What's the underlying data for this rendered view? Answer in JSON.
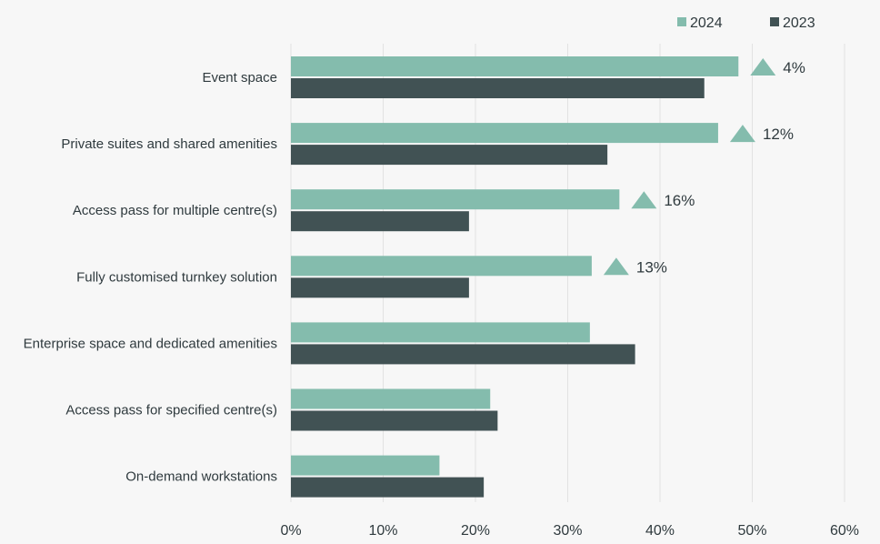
{
  "chart_data": {
    "type": "bar",
    "orientation": "horizontal",
    "categories": [
      "Event space",
      "Private suites and shared amenities",
      "Access pass for multiple centre(s)",
      "Fully customised turnkey solution",
      "Enterprise space and dedicated amenities",
      "Access pass for specified centre(s)",
      "On-demand workstations"
    ],
    "series": [
      {
        "name": "2024",
        "color": "#84bcad",
        "values": [
          48.5,
          46.3,
          35.6,
          32.6,
          32.4,
          21.6,
          16.1
        ]
      },
      {
        "name": "2023",
        "color": "#415254",
        "values": [
          44.8,
          34.3,
          19.3,
          19.3,
          37.3,
          22.4,
          20.9
        ]
      }
    ],
    "changes": [
      {
        "category_index": 0,
        "label": "4%",
        "direction": "up"
      },
      {
        "category_index": 1,
        "label": "12%",
        "direction": "up"
      },
      {
        "category_index": 2,
        "label": "16%",
        "direction": "up"
      },
      {
        "category_index": 3,
        "label": "13%",
        "direction": "up"
      }
    ],
    "xlim": [
      0,
      60
    ],
    "xticks": [
      0,
      10,
      20,
      30,
      40,
      50,
      60
    ],
    "xtick_labels": [
      "0%",
      "10%",
      "20%",
      "30%",
      "40%",
      "50%",
      "60%"
    ],
    "grid": true,
    "legend_position": "top-right",
    "change_marker_color": "#84bcad"
  }
}
